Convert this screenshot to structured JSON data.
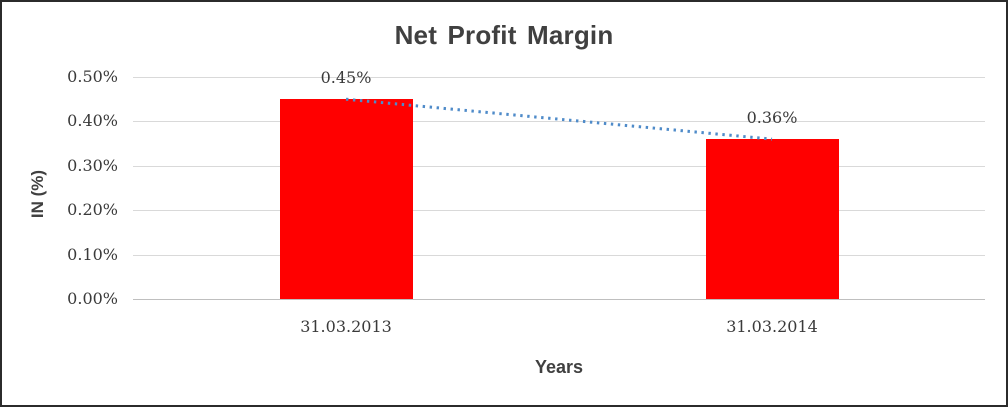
{
  "chart_data": {
    "type": "bar",
    "title": "Net Profit Margin",
    "categories": [
      "31.03.2013",
      "31.03.2014"
    ],
    "values": [
      0.45,
      0.36
    ],
    "data_labels": [
      "0.45%",
      "0.36%"
    ],
    "xlabel": "Years",
    "ylabel": "IN (%)",
    "ylim": [
      0,
      0.5
    ],
    "ytick_labels": [
      "0.00%",
      "0.10%",
      "0.20%",
      "0.30%",
      "0.40%",
      "0.50%"
    ],
    "grid": true,
    "legend": "none",
    "bar_color": "#FF0000",
    "trendline": {
      "type": "linear",
      "style": "dotted",
      "color": "#4F8BC9",
      "points": [
        0.45,
        0.36
      ]
    }
  },
  "colors": {
    "gridline": "#D9D9D9",
    "axis_line": "#BFBFBF",
    "text": "#3A3A3A",
    "title_text": "#404040",
    "frame_border": "#2B2B2B",
    "background": "#FFFFFF"
  }
}
